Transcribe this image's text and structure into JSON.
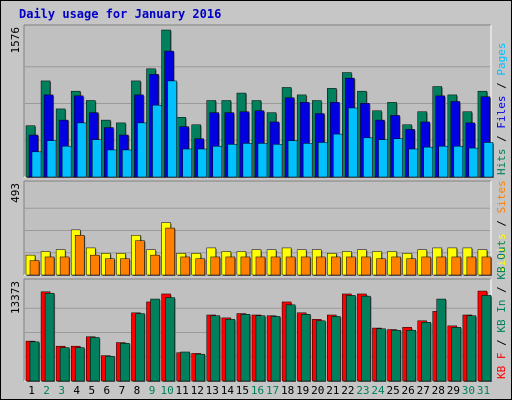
{
  "colors": {
    "hits": "#00805c",
    "files": "#0000e0",
    "pages": "#00c0ff",
    "visits": "#ffff00",
    "sites": "#ff8000",
    "kb_in": "#00805c",
    "kb_out": "#ff0000",
    "title": "#0000c8",
    "weekend_day": "#00805c",
    "weekday_day": "#000000",
    "panel_bg": "#c0c0c0",
    "frame_bg": "#c6c6c6"
  },
  "chart_data": {
    "type": "bar",
    "title": "Daily usage for January 2016",
    "categories": [
      "1",
      "2",
      "3",
      "4",
      "5",
      "6",
      "7",
      "8",
      "9",
      "10",
      "11",
      "12",
      "13",
      "14",
      "15",
      "16",
      "17",
      "18",
      "19",
      "20",
      "21",
      "22",
      "23",
      "24",
      "25",
      "26",
      "27",
      "28",
      "29",
      "30",
      "31"
    ],
    "weekend_days": [
      "2",
      "3",
      "9",
      "10",
      "16",
      "17",
      "23",
      "24",
      "30",
      "31"
    ],
    "panels": [
      {
        "id": "top",
        "max_label": "1576",
        "ymax": 1576,
        "labels": [
          {
            "text": "Hits",
            "color": "#00805c"
          },
          {
            "text": "Files",
            "color": "#0000e0"
          },
          {
            "text": "Pages",
            "color": "#00c0ff"
          }
        ],
        "separator": " / ",
        "series": [
          {
            "name": "Hits",
            "color": "#00805c",
            "values": [
              550,
              1030,
              730,
              920,
              820,
              610,
              580,
              1030,
              1160,
              1576,
              640,
              560,
              820,
              820,
              900,
              820,
              690,
              960,
              880,
              820,
              950,
              1120,
              920,
              710,
              800,
              560,
              700,
              970,
              880,
              700,
              920
            ]
          },
          {
            "name": "Files",
            "color": "#0000e0",
            "values": [
              450,
              880,
              610,
              870,
              690,
              530,
              450,
              880,
              1100,
              1350,
              540,
              410,
              690,
              690,
              700,
              710,
              590,
              850,
              800,
              680,
              800,
              1060,
              790,
              610,
              660,
              510,
              590,
              870,
              810,
              580,
              860
            ]
          },
          {
            "name": "Pages",
            "color": "#00c0ff",
            "values": [
              270,
              390,
              330,
              580,
              400,
              290,
              290,
              580,
              770,
              1030,
              300,
              300,
              330,
              350,
              360,
              360,
              350,
              390,
              360,
              370,
              460,
              740,
              420,
              400,
              410,
              300,
              320,
              330,
              330,
              310,
              370
            ]
          }
        ]
      },
      {
        "id": "middle",
        "max_label": "493",
        "ymax": 493,
        "labels": [
          {
            "text": "Visits",
            "color": "#ffff00"
          },
          {
            "text": "Sites",
            "color": "#ff8000"
          }
        ],
        "separator": " / ",
        "series": [
          {
            "name": "Visits",
            "color": "#ffff00",
            "values": [
              110,
              130,
              140,
              250,
              150,
              120,
              120,
              220,
              140,
              290,
              120,
              120,
              150,
              130,
              130,
              140,
              140,
              150,
              140,
              140,
              120,
              130,
              140,
              130,
              130,
              120,
              140,
              150,
              150,
              150,
              140
            ]
          },
          {
            "name": "Sites",
            "color": "#ff8000",
            "values": [
              80,
              100,
              100,
              220,
              110,
              90,
              90,
              190,
              110,
              260,
              100,
              90,
              100,
              100,
              100,
              100,
              100,
              100,
              100,
              100,
              100,
              100,
              100,
              90,
              100,
              90,
              100,
              100,
              100,
              100,
              100
            ]
          }
        ]
      },
      {
        "id": "bottom",
        "max_label": "13373",
        "ymax": 13373,
        "labels": [
          {
            "text": "KB F",
            "color": "#ff0000"
          },
          {
            "text": "KB In",
            "color": "#00805c"
          },
          {
            "text": "KB Out",
            "color": "#00805c"
          }
        ],
        "separator": " / ",
        "series": [
          {
            "name": "KB Out",
            "color": "#ff0000",
            "values": [
              5500,
              12300,
              4800,
              4800,
              6100,
              3500,
              5300,
              9400,
              10900,
              12000,
              3900,
              3800,
              9100,
              8700,
              9300,
              9100,
              9000,
              10900,
              9400,
              8500,
              9100,
              12000,
              12000,
              7300,
              7100,
              7400,
              8300,
              9600,
              7600,
              9100,
              12400
            ]
          },
          {
            "name": "KB In",
            "color": "#00805c",
            "values": [
              5400,
              12100,
              4600,
              4600,
              6000,
              3400,
              5200,
              9300,
              11300,
              11500,
              4000,
              3700,
              9000,
              8500,
              9200,
              9000,
              8900,
              10500,
              9200,
              8300,
              8900,
              11800,
              11700,
              7200,
              7000,
              7000,
              8100,
              11300,
              7400,
              9000,
              11800
            ]
          }
        ]
      }
    ]
  }
}
